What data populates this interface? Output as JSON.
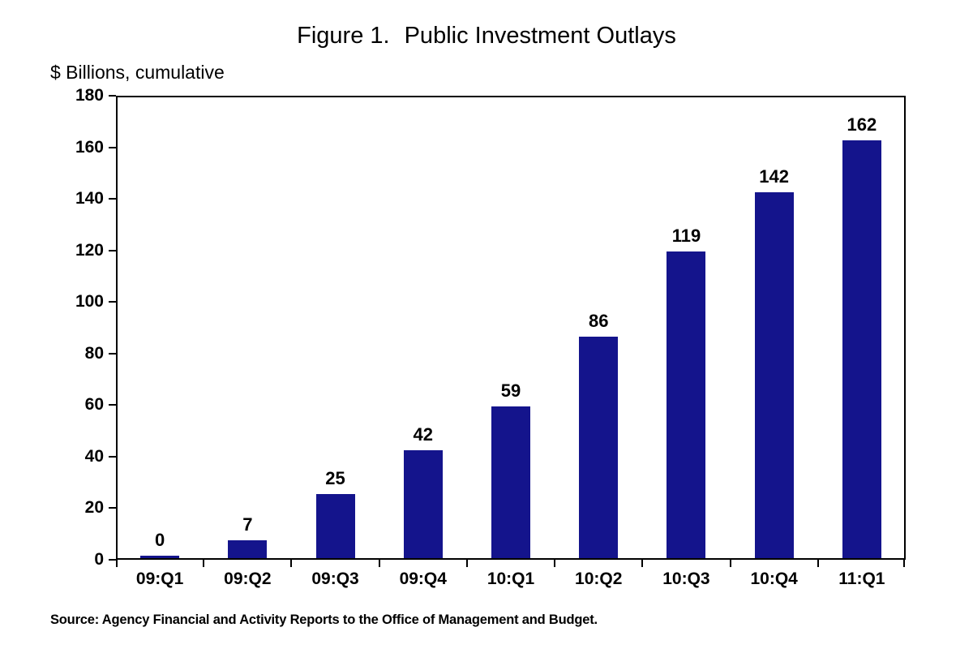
{
  "figure": {
    "figure_label": "Figure 1.",
    "title": "Public Investment Outlays",
    "unit_label": "$ Billions, cumulative",
    "source": "Source: Agency Financial and Activity Reports to the Office of Management and Budget."
  },
  "chart_data": {
    "type": "bar",
    "title": "Figure 1.  Public Investment Outlays",
    "subtitle": "",
    "xlabel": "",
    "ylabel": "$ Billions, cumulative",
    "categories": [
      "09:Q1",
      "09:Q2",
      "09:Q3",
      "09:Q4",
      "10:Q1",
      "10:Q2",
      "10:Q3",
      "10:Q4",
      "11:Q1"
    ],
    "values": [
      0,
      7,
      25,
      42,
      59,
      86,
      119,
      142,
      162
    ],
    "data_labels": [
      "0",
      "7",
      "25",
      "42",
      "59",
      "86",
      "119",
      "142",
      "162"
    ],
    "ylim": [
      0,
      180
    ],
    "ytick_step": 20,
    "yticks": [
      0,
      20,
      40,
      60,
      80,
      100,
      120,
      140,
      160,
      180
    ],
    "grid": false,
    "legend": "none",
    "bar_color": "#14148C",
    "axis_color": "#000000",
    "label_color": "#000000",
    "source_note": "Source: Agency Financial and Activity Reports to the Office of Management and Budget."
  }
}
